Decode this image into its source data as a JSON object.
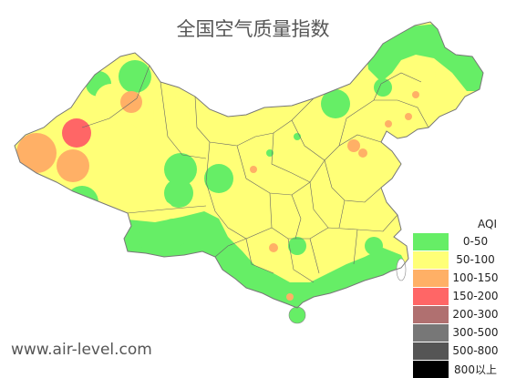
{
  "title": "全国空气质量指数",
  "website": "www.air-level.com",
  "legend": {
    "title": "AQI",
    "items": [
      {
        "label": "0-50",
        "color": "#66ee66"
      },
      {
        "label": "50-100",
        "color": "#ffff77"
      },
      {
        "label": "100-150",
        "color": "#ffb066"
      },
      {
        "label": "150-200",
        "color": "#ff6666"
      },
      {
        "label": "200-300",
        "color": "#b07070"
      },
      {
        "label": "300-500",
        "color": "#777777"
      },
      {
        "label": "500-800",
        "color": "#555555"
      },
      {
        "label": "800以上",
        "color": "#000000"
      }
    ]
  }
}
